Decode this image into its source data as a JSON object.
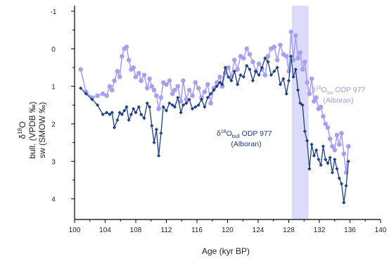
{
  "chart_data": {
    "type": "line",
    "xlabel": "Age (kyr BP)",
    "ylabel_parts": {
      "delta": "δ",
      "sup": "18",
      "o": "O",
      "line1": "bull. (VPDB ‰)",
      "line2": "sw (SMOW ‰)"
    },
    "xlim": [
      100,
      140
    ],
    "ylim": [
      -1.15,
      4.55
    ],
    "y_inverted": true,
    "x_ticks": [
      100,
      104,
      108,
      112,
      116,
      120,
      124,
      128,
      132,
      136,
      140
    ],
    "x_tick_labels": [
      "100",
      "104",
      "108",
      "112",
      "116",
      "120",
      "124",
      "128",
      "132",
      "136",
      "140"
    ],
    "y_ticks": [
      -1,
      0,
      1,
      2,
      3,
      4
    ],
    "y_tick_labels": [
      "-1",
      "0",
      "1",
      "2",
      "3",
      "4"
    ],
    "shaded_band": {
      "x_start": 128.4,
      "x_end": 130.6,
      "color": "#dcdcfa"
    },
    "annotations": {
      "bull": {
        "prefix": "δ",
        "sup": "18",
        "o": "O",
        "sub": "bull",
        "rest": " ODP 977",
        "line2": "(Alboran)",
        "color": "#1a3a7a"
      },
      "sw": {
        "prefix": "δ",
        "sup": "18",
        "o": "O",
        "sub": "sw",
        "rest": " ODP 977",
        "line2": "(Alboran)",
        "color": "#a49ae6"
      }
    },
    "colors": {
      "bull": "#1f3f80",
      "sw": "#a89ff0",
      "axis": "#000000"
    },
    "series": [
      {
        "key": "sw",
        "x": [
          100.8,
          101.5,
          102.3,
          103.0,
          103.7,
          104.2,
          104.6,
          104.9,
          105.2,
          105.6,
          105.9,
          106.2,
          106.5,
          106.8,
          107.1,
          107.4,
          107.7,
          108.0,
          108.4,
          108.7,
          109.1,
          109.5,
          109.8,
          110.1,
          110.4,
          110.7,
          111.0,
          111.3,
          111.6,
          112.0,
          112.4,
          112.8,
          113.1,
          113.5,
          113.9,
          114.2,
          114.6,
          115.0,
          115.4,
          115.8,
          116.2,
          116.6,
          117.0,
          117.4,
          117.8,
          118.2,
          118.6,
          119.0,
          119.3,
          119.7,
          120.1,
          120.5,
          120.9,
          121.3,
          121.7,
          122.1,
          122.5,
          122.9,
          123.3,
          123.7,
          124.1,
          124.5,
          124.9,
          125.3,
          125.7,
          126.1,
          126.5,
          126.9,
          127.3,
          127.7,
          128.0,
          128.3,
          128.6,
          128.9,
          129.2,
          129.5,
          129.8,
          130.1,
          130.4,
          130.7,
          131.0,
          131.3,
          131.6,
          131.9,
          132.2,
          132.5,
          132.8,
          133.1,
          133.4,
          133.7,
          134.0,
          134.3,
          134.6,
          134.9,
          135.2,
          135.5,
          135.8
        ],
        "y": [
          0.55,
          1.15,
          1.3,
          1.25,
          1.2,
          1.25,
          1.0,
          1.1,
          0.85,
          0.6,
          0.75,
          0.2,
          0.0,
          -0.05,
          0.3,
          0.55,
          0.5,
          0.75,
          0.65,
          0.85,
          0.7,
          1.05,
          0.8,
          1.0,
          1.1,
          1.25,
          1.6,
          1.3,
          0.9,
          0.95,
          0.85,
          1.2,
          1.1,
          1.0,
          1.4,
          0.85,
          1.35,
          1.1,
          1.25,
          0.9,
          1.05,
          1.3,
          1.15,
          0.95,
          1.45,
          1.05,
          0.9,
          0.75,
          1.0,
          0.65,
          0.5,
          0.75,
          0.3,
          0.55,
          0.2,
          0.25,
          0.0,
          0.15,
          0.35,
          0.6,
          0.4,
          0.55,
          0.7,
          0.2,
          0.0,
          -0.05,
          0.3,
          -0.1,
          0.15,
          0.2,
          0.6,
          -0.45,
          0.3,
          -0.35,
          0.25,
          0.1,
          0.55,
          0.35,
          0.9,
          1.2,
          0.8,
          1.4,
          1.3,
          1.6,
          1.55,
          1.8,
          2.0,
          2.1,
          2.4,
          2.6,
          2.7,
          2.3,
          2.55,
          2.25,
          2.8,
          3.3,
          2.6
        ]
      },
      {
        "key": "bull",
        "x": [
          100.8,
          101.5,
          102.3,
          103.0,
          103.7,
          104.2,
          104.6,
          104.9,
          105.2,
          105.6,
          105.9,
          106.2,
          106.5,
          106.8,
          107.1,
          107.4,
          107.7,
          108.0,
          108.4,
          108.7,
          109.1,
          109.5,
          109.8,
          110.1,
          110.4,
          110.7,
          111.0,
          111.3,
          111.6,
          112.0,
          112.4,
          112.8,
          113.1,
          113.5,
          113.9,
          114.2,
          114.6,
          115.0,
          115.4,
          115.8,
          116.2,
          116.6,
          117.0,
          117.4,
          117.8,
          118.2,
          118.6,
          119.0,
          119.3,
          119.7,
          120.1,
          120.5,
          120.9,
          121.3,
          121.7,
          122.1,
          122.5,
          122.9,
          123.3,
          123.7,
          124.1,
          124.5,
          124.9,
          125.3,
          125.7,
          126.1,
          126.5,
          126.9,
          127.3,
          127.7,
          128.0,
          128.3,
          128.6,
          128.9,
          129.2,
          129.5,
          129.8,
          130.1,
          130.4,
          130.7,
          131.0,
          131.3,
          131.6,
          131.9,
          132.2,
          132.5,
          132.8,
          133.1,
          133.4,
          133.7,
          134.0,
          134.3,
          134.6,
          134.9,
          135.2,
          135.5,
          135.8
        ],
        "y": [
          1.05,
          1.2,
          1.35,
          1.5,
          1.75,
          1.7,
          1.75,
          1.7,
          2.1,
          1.9,
          1.7,
          1.75,
          1.65,
          1.55,
          1.9,
          1.75,
          1.6,
          1.7,
          1.55,
          1.75,
          1.85,
          1.45,
          1.55,
          2.05,
          2.5,
          2.15,
          2.85,
          2.25,
          1.55,
          1.65,
          1.45,
          1.5,
          1.55,
          1.3,
          1.7,
          1.5,
          1.45,
          1.35,
          1.6,
          1.55,
          1.5,
          1.35,
          1.55,
          1.3,
          1.2,
          1.1,
          1.0,
          0.9,
          0.95,
          0.5,
          0.75,
          0.85,
          0.6,
          0.95,
          0.7,
          0.75,
          0.45,
          0.55,
          0.85,
          0.6,
          0.7,
          0.5,
          0.25,
          0.35,
          0.7,
          0.6,
          0.5,
          0.95,
          0.8,
          1.2,
          0.85,
          0.2,
          0.75,
          0.55,
          1.1,
          1.45,
          1.5,
          2.2,
          2.45,
          3.2,
          2.55,
          2.85,
          2.7,
          2.95,
          3.1,
          2.6,
          2.95,
          3.05,
          2.9,
          3.3,
          2.95,
          3.2,
          3.45,
          3.6,
          4.1,
          3.65,
          3.0
        ]
      }
    ]
  }
}
